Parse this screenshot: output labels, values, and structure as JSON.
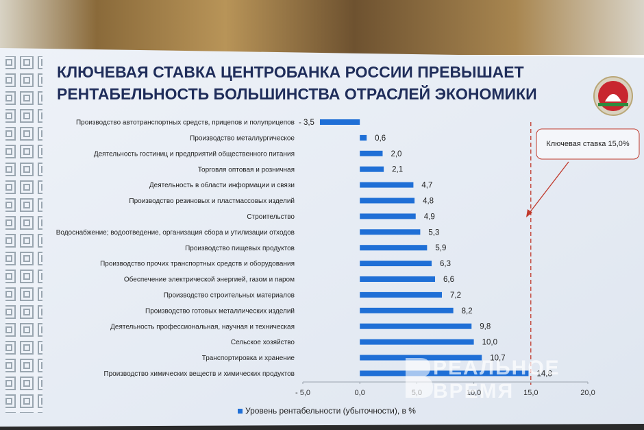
{
  "chart_data": {
    "type": "bar",
    "orientation": "horizontal",
    "title": [
      "КЛЮЧЕВАЯ СТАВКА ЦЕНТРОБАНКА РОССИИ ПРЕВЫШАЕТ",
      "РЕНТАБЕЛЬНОСТЬ БОЛЬШИНСТВА ОТРАСЛЕЙ ЭКОНОМИКИ"
    ],
    "categories": [
      "Производство автотранспортных средств, прицепов и полуприцепов",
      "Производство металлургическое",
      "Деятельность гостиниц и предприятий общественного питания",
      "Торговля оптовая и розничная",
      "Деятельность в области информации и связи",
      "Производство резиновых и пластмассовых изделий",
      "Строительство",
      "Водоснабжение; водоотведение, организация сбора и утилизации отходов",
      "Производство пищевых продуктов",
      "Производство прочих транспортных средств и оборудования",
      "Обеспечение электрической энергией, газом и паром",
      "Производство строительных материалов",
      "Производство готовых металлических изделий",
      "Деятельность профессиональная, научная и техническая",
      "Сельское хозяйство",
      "Транспортировка и хранение",
      "Производство химических веществ и химических продуктов"
    ],
    "series": [
      {
        "name": "Уровень рентабельности (убыточности), в %",
        "color": "#1f6fd6",
        "values": [
          -3.5,
          0.6,
          2.0,
          2.1,
          4.7,
          4.8,
          4.9,
          5.3,
          5.9,
          6.3,
          6.6,
          7.2,
          8.2,
          9.8,
          10.0,
          10.7,
          14.8
        ],
        "value_labels": [
          "- 3,5",
          "0,6",
          "2,0",
          "2,1",
          "4,7",
          "4,8",
          "4,9",
          "5,3",
          "5,9",
          "6,3",
          "6,6",
          "7,2",
          "8,2",
          "9,8",
          "10,0",
          "10,7",
          "14,8"
        ]
      }
    ],
    "xlim": [
      -5,
      20
    ],
    "xticks": [
      {
        "value": -5,
        "label": "- 5,0"
      },
      {
        "value": 0,
        "label": "0,0"
      },
      {
        "value": 5,
        "label": "5,0"
      },
      {
        "value": 10,
        "label": "10,0"
      },
      {
        "value": 15,
        "label": "15,0"
      },
      {
        "value": 20,
        "label": "20,0"
      }
    ],
    "reference_line": {
      "value": 15,
      "label": "Ключевая ставка 15,0%",
      "color": "#c0392b"
    },
    "watermark": [
      "РЕАЛЬНОЕ",
      "ВРЕМЯ"
    ]
  }
}
